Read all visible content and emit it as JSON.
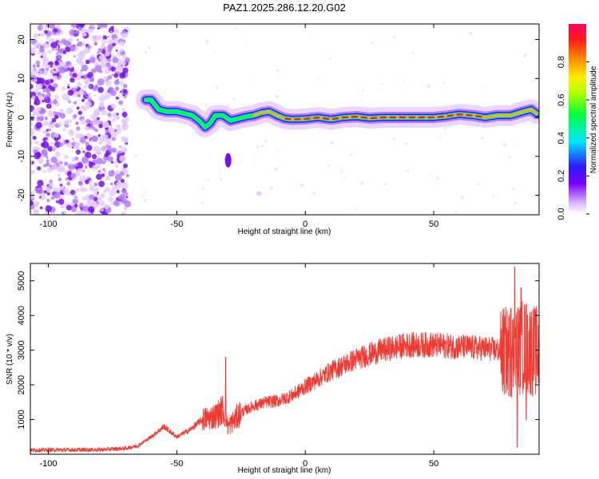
{
  "title": "PAZ1.2025.286.12.20.G02",
  "chart_data": [
    {
      "type": "heatmap",
      "name": "spectrogram",
      "xlabel": "Height of straight line (km)",
      "ylabel": "Frequency (Hz)",
      "xlim": [
        -107,
        91
      ],
      "ylim": [
        -25,
        24
      ],
      "xticks": [
        -100,
        -50,
        0,
        50
      ],
      "yticks": [
        -20,
        -10,
        0,
        10,
        20
      ],
      "ridge": {
        "x": [
          -62,
          -60,
          -57,
          -54,
          -50,
          -47,
          -44,
          -41,
          -39,
          -37,
          -35,
          -32,
          -29,
          -26,
          -23,
          -20,
          -17,
          -14,
          -11,
          -8,
          -5,
          0,
          5,
          10,
          15,
          20,
          25,
          30,
          40,
          50,
          55,
          60,
          65,
          70,
          75,
          80,
          85,
          88,
          90
        ],
        "y": [
          4.5,
          4.5,
          2,
          1.5,
          1.5,
          1,
          0.5,
          -1,
          -2.5,
          -1.5,
          0.5,
          0.5,
          -0.8,
          -0.3,
          0.2,
          0.5,
          1.2,
          1.5,
          0.5,
          -0.3,
          -0.5,
          -0.4,
          0,
          -0.5,
          0,
          0.2,
          -0.2,
          0,
          0,
          0,
          0.3,
          0.8,
          0.5,
          0,
          0.5,
          0.5,
          1.5,
          2,
          1
        ]
      },
      "colorbar": {
        "label": "Normalized spectral amplitude",
        "range": [
          0,
          1
        ],
        "ticks": [
          "0.0",
          "0.2",
          "0.4",
          "0.6",
          "0.8"
        ],
        "tick_values": [
          0,
          0.2,
          0.4,
          0.6,
          0.8
        ]
      }
    },
    {
      "type": "line",
      "name": "snr",
      "xlabel": "Height of straight line (km)",
      "ylabel": "SNR (10 * v/v)",
      "xlim": [
        -107,
        91
      ],
      "ylim": [
        0,
        5500
      ],
      "xticks": [
        -100,
        -50,
        0,
        50
      ],
      "yticks": [
        1000,
        2000,
        3000,
        4000,
        5000
      ],
      "line_color": "#ef3b33",
      "envelope": {
        "x": [
          -107,
          -80,
          -70,
          -65,
          -60,
          -55,
          -50,
          -45,
          -40,
          -35,
          -32,
          -30,
          -25,
          -20,
          -15,
          -10,
          -5,
          0,
          10,
          20,
          30,
          40,
          50,
          60,
          70,
          75,
          78,
          80,
          82,
          84,
          86,
          88,
          91
        ],
        "y": [
          120,
          130,
          170,
          250,
          500,
          800,
          500,
          700,
          1000,
          1100,
          1300,
          800,
          1200,
          1400,
          1500,
          1550,
          1700,
          1950,
          2400,
          2750,
          3000,
          3150,
          3150,
          3100,
          3050,
          3000,
          2950,
          2900,
          3000,
          3100,
          3100,
          3000,
          2950
        ]
      },
      "spikes": [
        {
          "x": -31,
          "y": 2800
        },
        {
          "x": 80,
          "y": 4200
        },
        {
          "x": 81.5,
          "y": 5400
        },
        {
          "x": 82.5,
          "y": 200
        },
        {
          "x": 84,
          "y": 4800
        },
        {
          "x": 86,
          "y": 1000
        },
        {
          "x": 88,
          "y": 4100
        }
      ]
    }
  ]
}
